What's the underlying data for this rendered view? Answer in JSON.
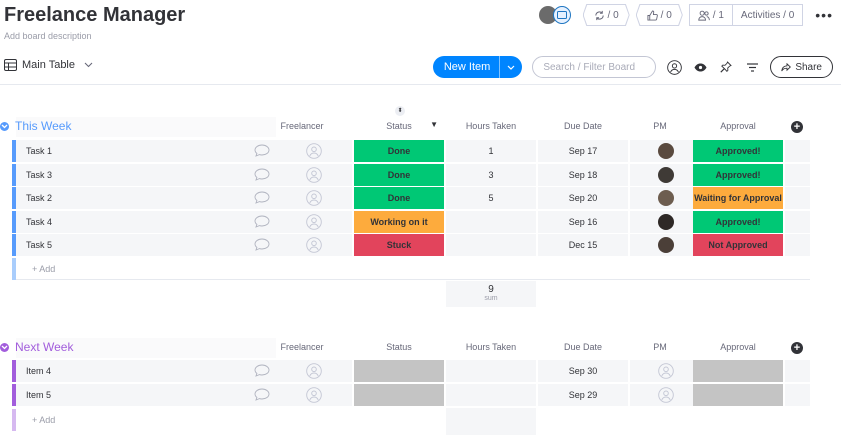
{
  "header": {
    "title": "Freelance Manager",
    "description": "Add board description",
    "updates_count": "/ 0",
    "likes_count": "/ 0",
    "members_count": "/ 1",
    "activities_label": "Activities / 0",
    "more_label": "•••"
  },
  "toolbar": {
    "view_label": "Main Table",
    "new_item_label": "New Item",
    "search_placeholder": "Search / Filter Board",
    "share_label": "Share"
  },
  "columns": {
    "freelancer": "Freelancer",
    "status": "Status",
    "hours": "Hours Taken",
    "due": "Due Date",
    "pm": "PM",
    "approval": "Approval"
  },
  "groups": [
    {
      "title": "This Week",
      "color": "#579bfc",
      "rows": [
        {
          "name": "Task 1",
          "status": "Done",
          "status_color": "#00c875",
          "hours": "1",
          "due": "Sep 17",
          "approval": "Approved!",
          "approval_color": "#00c875"
        },
        {
          "name": "Task 3",
          "status": "Done",
          "status_color": "#00c875",
          "hours": "3",
          "due": "Sep 18",
          "approval": "Approved!",
          "approval_color": "#00c875"
        },
        {
          "name": "Task 2",
          "status": "Done",
          "status_color": "#00c875",
          "hours": "5",
          "due": "Sep 20",
          "approval": "Waiting for Approval",
          "approval_color": "#fdab3d"
        },
        {
          "name": "Task 4",
          "status": "Working on it",
          "status_color": "#fdab3d",
          "hours": "",
          "due": "Sep 16",
          "approval": "Approved!",
          "approval_color": "#00c875"
        },
        {
          "name": "Task 5",
          "status": "Stuck",
          "status_color": "#e2445c",
          "hours": "",
          "due": "Dec 15",
          "approval": "Not Approved",
          "approval_color": "#e2445c"
        }
      ],
      "add_label": "+ Add",
      "sum_value": "9",
      "sum_label": "sum"
    },
    {
      "title": "Next Week",
      "color": "#a25ddc",
      "rows": [
        {
          "name": "Item 4",
          "due": "Sep 30"
        },
        {
          "name": "Item 5",
          "due": "Sep 29"
        }
      ],
      "add_label": "+ Add"
    }
  ],
  "colors": {
    "accent": "#0085ff",
    "done": "#00c875",
    "working": "#fdab3d",
    "stuck": "#e2445c",
    "empty": "#c4c4c4"
  }
}
